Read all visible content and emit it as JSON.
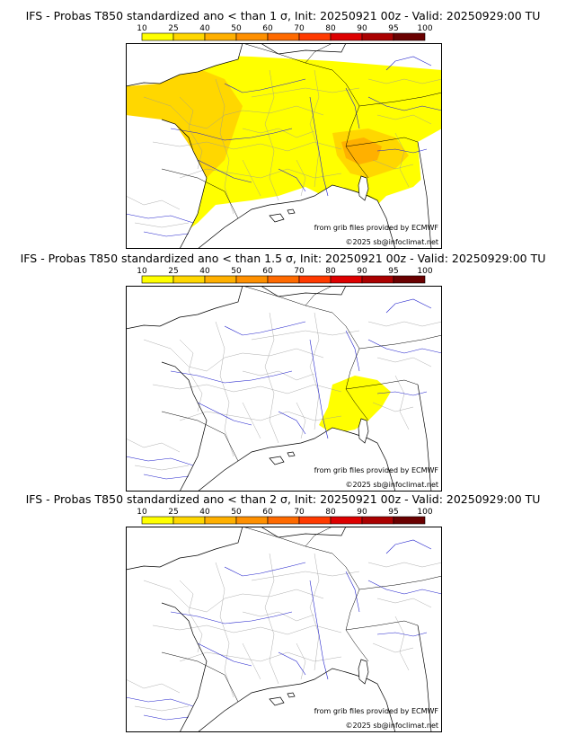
{
  "panels": [
    {
      "title": "IFS - Probas T850  standardized ano < than 1 σ, Init: 20250921 00z - Valid: 20250929:00 TU"
    },
    {
      "title": "IFS - Probas T850  standardized ano < than 1.5 σ, Init: 20250921 00z - Valid: 20250929:00 TU"
    },
    {
      "title": "IFS - Probas T850  standardized ano < than 2 σ, Init: 20250921 00z - Valid: 20250929:00 TU"
    }
  ],
  "colorbar": {
    "ticks": [
      "10",
      "25",
      "40",
      "50",
      "60",
      "70",
      "80",
      "90",
      "95",
      "100"
    ],
    "colors": [
      "#ffff00",
      "#ffd700",
      "#ffb000",
      "#ff9000",
      "#ff6a00",
      "#ff3a00",
      "#dd0000",
      "#aa0000",
      "#6a0000"
    ]
  },
  "credits": {
    "source": "from grib files provided by ECMWF",
    "copyright": "©2025 sb@infoclimat.net"
  }
}
